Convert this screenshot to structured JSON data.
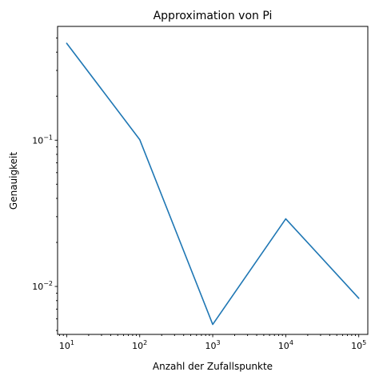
{
  "chart_data": {
    "type": "line",
    "title": "Approximation von Pi",
    "xlabel": "Anzahl der Zufallspunkte",
    "ylabel": "Genauigkeit",
    "xscale": "log",
    "yscale": "log",
    "grid": false,
    "legend": "none",
    "xlim": [
      7.5,
      133000
    ],
    "ylim": [
      0.0047,
      0.6
    ],
    "x": [
      10,
      100,
      1000,
      10000,
      100000
    ],
    "series": [
      {
        "color": "#1f77b4",
        "values": [
          0.46,
          0.101,
          0.0055,
          0.029,
          0.0083
        ]
      }
    ],
    "xticks": [
      {
        "value": 10,
        "base": "10",
        "exp": "1"
      },
      {
        "value": 100,
        "base": "10",
        "exp": "2"
      },
      {
        "value": 1000,
        "base": "10",
        "exp": "3"
      },
      {
        "value": 10000,
        "base": "10",
        "exp": "4"
      },
      {
        "value": 100000,
        "base": "10",
        "exp": "5"
      }
    ],
    "yticks": [
      {
        "value": 0.01,
        "base": "10",
        "exp": "−2"
      },
      {
        "value": 0.1,
        "base": "10",
        "exp": "−1"
      }
    ]
  }
}
